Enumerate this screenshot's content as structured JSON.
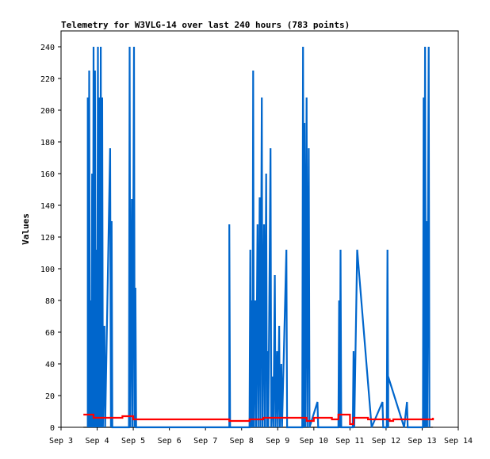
{
  "chart_data": {
    "type": "line",
    "title": "Telemetry for W3VLG-14 over last 240 hours (783 points)",
    "xlabel": "",
    "ylabel": "Values",
    "x_unit": "days (Sep 3 = 0)",
    "xlim": [
      0,
      11
    ],
    "ylim": [
      0,
      250
    ],
    "x_ticks": [
      {
        "label": "Sep 3",
        "x": 0
      },
      {
        "label": "Sep 4",
        "x": 1
      },
      {
        "label": "Sep 5",
        "x": 2
      },
      {
        "label": "Sep 6",
        "x": 3
      },
      {
        "label": "Sep 7",
        "x": 4
      },
      {
        "label": "Sep 8",
        "x": 5
      },
      {
        "label": "Sep 9",
        "x": 6
      },
      {
        "label": "Sep 10",
        "x": 7
      },
      {
        "label": "Sep 11",
        "x": 8
      },
      {
        "label": "Sep 12",
        "x": 9
      },
      {
        "label": "Sep 13",
        "x": 10
      },
      {
        "label": "Sep 14",
        "x": 11
      }
    ],
    "y_ticks": [
      "0",
      "20",
      "40",
      "60",
      "80",
      "100",
      "120",
      "140",
      "160",
      "180",
      "200",
      "220",
      "240"
    ],
    "grid": false,
    "series": [
      {
        "color": "#000000",
        "points": [
          [
            0.62,
            0
          ],
          [
            10.3,
            0
          ]
        ]
      },
      {
        "color": "#0066cc",
        "points": [
          [
            0.74,
            0
          ],
          [
            0.74,
            208
          ],
          [
            0.76,
            0
          ],
          [
            0.78,
            225
          ],
          [
            0.8,
            0
          ],
          [
            0.82,
            80
          ],
          [
            0.84,
            0
          ],
          [
            0.86,
            160
          ],
          [
            0.88,
            0
          ],
          [
            0.9,
            240
          ],
          [
            0.92,
            0
          ],
          [
            0.94,
            225
          ],
          [
            0.96,
            0
          ],
          [
            0.98,
            112
          ],
          [
            1.0,
            0
          ],
          [
            1.02,
            240
          ],
          [
            1.04,
            0
          ],
          [
            1.06,
            208
          ],
          [
            1.08,
            0
          ],
          [
            1.1,
            240
          ],
          [
            1.12,
            0
          ],
          [
            1.14,
            208
          ],
          [
            1.16,
            0
          ],
          [
            1.2,
            64
          ],
          [
            1.22,
            0
          ],
          [
            1.36,
            176
          ],
          [
            1.38,
            0
          ],
          [
            1.4,
            130
          ],
          [
            1.42,
            0
          ],
          [
            1.88,
            0
          ],
          [
            1.9,
            240
          ],
          [
            1.92,
            0
          ],
          [
            1.96,
            144
          ],
          [
            1.98,
            0
          ],
          [
            2.02,
            240
          ],
          [
            2.04,
            0
          ],
          [
            2.06,
            88
          ],
          [
            2.08,
            0
          ],
          [
            4.66,
            0
          ],
          [
            4.66,
            128
          ],
          [
            4.68,
            0
          ],
          [
            5.22,
            0
          ],
          [
            5.24,
            112
          ],
          [
            5.26,
            0
          ],
          [
            5.28,
            80
          ],
          [
            5.3,
            0
          ],
          [
            5.32,
            225
          ],
          [
            5.34,
            0
          ],
          [
            5.38,
            80
          ],
          [
            5.4,
            0
          ],
          [
            5.44,
            128
          ],
          [
            5.46,
            0
          ],
          [
            5.5,
            145
          ],
          [
            5.52,
            0
          ],
          [
            5.56,
            208
          ],
          [
            5.58,
            0
          ],
          [
            5.62,
            128
          ],
          [
            5.64,
            0
          ],
          [
            5.68,
            160
          ],
          [
            5.7,
            0
          ],
          [
            5.72,
            48
          ],
          [
            5.74,
            0
          ],
          [
            5.8,
            176
          ],
          [
            5.82,
            0
          ],
          [
            5.86,
            32
          ],
          [
            5.88,
            0
          ],
          [
            5.92,
            96
          ],
          [
            5.94,
            0
          ],
          [
            5.98,
            48
          ],
          [
            6.0,
            0
          ],
          [
            6.04,
            64
          ],
          [
            6.06,
            0
          ],
          [
            6.1,
            40
          ],
          [
            6.12,
            0
          ],
          [
            6.24,
            112
          ],
          [
            6.26,
            0
          ],
          [
            6.68,
            0
          ],
          [
            6.7,
            240
          ],
          [
            6.72,
            0
          ],
          [
            6.74,
            192
          ],
          [
            6.76,
            0
          ],
          [
            6.8,
            208
          ],
          [
            6.82,
            0
          ],
          [
            6.86,
            176
          ],
          [
            6.88,
            0
          ],
          [
            7.1,
            16
          ],
          [
            7.12,
            0
          ],
          [
            7.68,
            0
          ],
          [
            7.7,
            80
          ],
          [
            7.72,
            0
          ],
          [
            7.74,
            112
          ],
          [
            7.76,
            0
          ],
          [
            8.08,
            0
          ],
          [
            8.1,
            48
          ],
          [
            8.12,
            0
          ],
          [
            8.2,
            112
          ],
          [
            8.6,
            0
          ],
          [
            8.9,
            16
          ],
          [
            8.92,
            0
          ],
          [
            9.02,
            0
          ],
          [
            9.04,
            112
          ],
          [
            9.06,
            0
          ],
          [
            9.06,
            32
          ],
          [
            9.5,
            0
          ],
          [
            9.58,
            16
          ],
          [
            9.6,
            0
          ],
          [
            10.02,
            0
          ],
          [
            10.04,
            208
          ],
          [
            10.06,
            0
          ],
          [
            10.08,
            240
          ],
          [
            10.1,
            0
          ],
          [
            10.12,
            130
          ],
          [
            10.14,
            0
          ],
          [
            10.18,
            240
          ],
          [
            10.2,
            0
          ]
        ]
      },
      {
        "color": "#ff0000",
        "points": [
          [
            0.62,
            8
          ],
          [
            0.9,
            8
          ],
          [
            0.9,
            6
          ],
          [
            1.7,
            6
          ],
          [
            1.7,
            7
          ],
          [
            2.0,
            7
          ],
          [
            2.0,
            5
          ],
          [
            4.66,
            5
          ],
          [
            4.66,
            4
          ],
          [
            5.22,
            4
          ],
          [
            5.22,
            5
          ],
          [
            5.6,
            5
          ],
          [
            5.6,
            6
          ],
          [
            6.8,
            6
          ],
          [
            6.8,
            4
          ],
          [
            7.0,
            4
          ],
          [
            7.0,
            6
          ],
          [
            7.5,
            6
          ],
          [
            7.5,
            5
          ],
          [
            7.68,
            5
          ],
          [
            7.68,
            8
          ],
          [
            8.0,
            8
          ],
          [
            8.0,
            2
          ],
          [
            8.1,
            2
          ],
          [
            8.1,
            6
          ],
          [
            8.5,
            6
          ],
          [
            8.5,
            5
          ],
          [
            9.1,
            5
          ],
          [
            9.1,
            4
          ],
          [
            9.2,
            4
          ],
          [
            9.2,
            5
          ],
          [
            10.3,
            5
          ],
          [
            10.3,
            6
          ]
        ]
      }
    ]
  }
}
